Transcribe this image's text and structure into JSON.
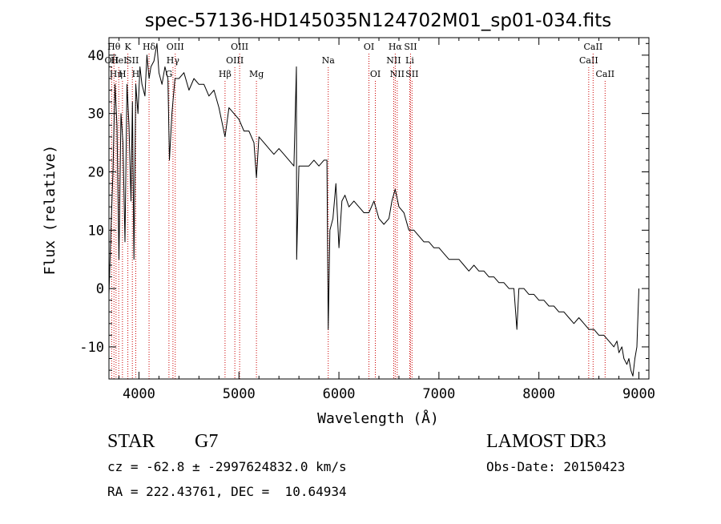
{
  "chart_data": {
    "type": "line",
    "title": "spec-57136-HD145035N124702M01_sp01-034.fits",
    "xlabel": "Wavelength (Å)",
    "ylabel": "Flux (relative)",
    "xlim": [
      3700,
      9100
    ],
    "ylim": [
      -15.5,
      43
    ],
    "xticks": [
      4000,
      5000,
      6000,
      7000,
      8000,
      9000
    ],
    "yticks": [
      -10,
      0,
      10,
      20,
      30,
      40
    ],
    "grid": false,
    "line_color": "#000000",
    "marker_color": "#cc0000",
    "series": [
      {
        "x": [
          3700,
          3720,
          3740,
          3760,
          3780,
          3800,
          3820,
          3840,
          3860,
          3880,
          3900,
          3920,
          3935,
          3950,
          3968,
          3990,
          4010,
          4030,
          4060,
          4080,
          4101,
          4120,
          4150,
          4180,
          4200,
          4230,
          4260,
          4290,
          4305,
          4330,
          4360,
          4400,
          4450,
          4500,
          4550,
          4600,
          4650,
          4700,
          4750,
          4800,
          4861,
          4900,
          4950,
          5000,
          5050,
          5100,
          5150,
          5175,
          5200,
          5250,
          5300,
          5350,
          5400,
          5450,
          5500,
          5550,
          5575,
          5577,
          5600,
          5650,
          5700,
          5750,
          5800,
          5850,
          5880,
          5893,
          5910,
          5940,
          5970,
          6000,
          6030,
          6060,
          6100,
          6150,
          6200,
          6250,
          6300,
          6350,
          6400,
          6450,
          6500,
          6530,
          6563,
          6600,
          6650,
          6700,
          6750,
          6800,
          6850,
          6900,
          6950,
          7000,
          7050,
          7100,
          7150,
          7200,
          7250,
          7300,
          7350,
          7400,
          7450,
          7500,
          7550,
          7600,
          7650,
          7700,
          7750,
          7780,
          7800,
          7850,
          7900,
          7950,
          8000,
          8050,
          8100,
          8150,
          8200,
          8250,
          8300,
          8350,
          8400,
          8450,
          8500,
          8550,
          8600,
          8650,
          8700,
          8750,
          8780,
          8800,
          8830,
          8850,
          8880,
          8900,
          8920,
          8940,
          8960,
          8980,
          9000
        ],
        "y": [
          -1,
          10,
          20,
          35,
          28,
          5,
          30,
          25,
          8,
          35,
          28,
          15,
          32,
          5,
          35,
          30,
          38,
          35,
          33,
          40,
          36,
          38,
          39,
          42,
          37,
          35,
          38,
          36,
          22,
          30,
          36,
          36,
          37,
          34,
          36,
          35,
          35,
          33,
          34,
          31,
          26,
          31,
          30,
          29,
          27,
          27,
          25,
          19,
          26,
          25,
          24,
          23,
          24,
          23,
          22,
          21,
          38,
          5,
          21,
          21,
          21,
          22,
          21,
          22,
          22,
          -7,
          10,
          12,
          18,
          7,
          15,
          16,
          14,
          15,
          14,
          13,
          13,
          15,
          12,
          11,
          12,
          15,
          17,
          14,
          13,
          10,
          10,
          9,
          8,
          8,
          7,
          7,
          6,
          5,
          5,
          5,
          4,
          3,
          4,
          3,
          3,
          2,
          2,
          1,
          1,
          0,
          0,
          -7,
          0,
          0,
          -1,
          -1,
          -2,
          -2,
          -3,
          -3,
          -4,
          -4,
          -5,
          -6,
          -5,
          -6,
          -7,
          -7,
          -8,
          -8,
          -9,
          -10,
          -9,
          -11,
          -10,
          -12,
          -13,
          -12,
          -14,
          -15,
          -12,
          -10,
          0
        ]
      }
    ],
    "line_markers": [
      {
        "x": 3727,
        "label": "OII",
        "row": 1
      },
      {
        "x": 3750,
        "label": "Hθ",
        "row": 0
      },
      {
        "x": 3771,
        "label": "Hη",
        "row": 2
      },
      {
        "x": 3798,
        "label": "HeI",
        "row": 1
      },
      {
        "x": 3835,
        "label": "H",
        "row": 2
      },
      {
        "x": 3889,
        "label": "K",
        "row": 0
      },
      {
        "x": 3934,
        "label": "SII",
        "row": 1
      },
      {
        "x": 3968,
        "label": "H",
        "row": 2
      },
      {
        "x": 4101,
        "label": "Hδ",
        "row": 0
      },
      {
        "x": 4300,
        "label": "G",
        "row": 2
      },
      {
        "x": 4340,
        "label": "Hγ",
        "row": 1
      },
      {
        "x": 4363,
        "label": "OIII",
        "row": 0
      },
      {
        "x": 4861,
        "label": "Hβ",
        "row": 2
      },
      {
        "x": 4959,
        "label": "OIII",
        "row": 1
      },
      {
        "x": 5007,
        "label": "OIII",
        "row": 0
      },
      {
        "x": 5175,
        "label": "Mg",
        "row": 2
      },
      {
        "x": 5893,
        "label": "Na",
        "row": 1
      },
      {
        "x": 6300,
        "label": "OI",
        "row": 0
      },
      {
        "x": 6364,
        "label": "OI",
        "row": 2
      },
      {
        "x": 6548,
        "label": "NII",
        "row": 1
      },
      {
        "x": 6563,
        "label": "Hα",
        "row": 0
      },
      {
        "x": 6583,
        "label": "NII",
        "row": 2
      },
      {
        "x": 6708,
        "label": "Li",
        "row": 1
      },
      {
        "x": 6716,
        "label": "SII",
        "row": 0
      },
      {
        "x": 6731,
        "label": "SII",
        "row": 2
      },
      {
        "x": 8498,
        "label": "CaII",
        "row": 1
      },
      {
        "x": 8542,
        "label": "CaII",
        "row": 0
      },
      {
        "x": 8662,
        "label": "CaII",
        "row": 2
      }
    ]
  },
  "info": {
    "object_class": "STAR",
    "subclass": "G7",
    "survey": "LAMOST DR3",
    "redshift_line": "cz = -62.8 ± -2997624832.0 km/s",
    "obs_date_line": "Obs-Date: 20150423",
    "coords_line": "RA = 222.43761, DEC =  10.64934"
  }
}
